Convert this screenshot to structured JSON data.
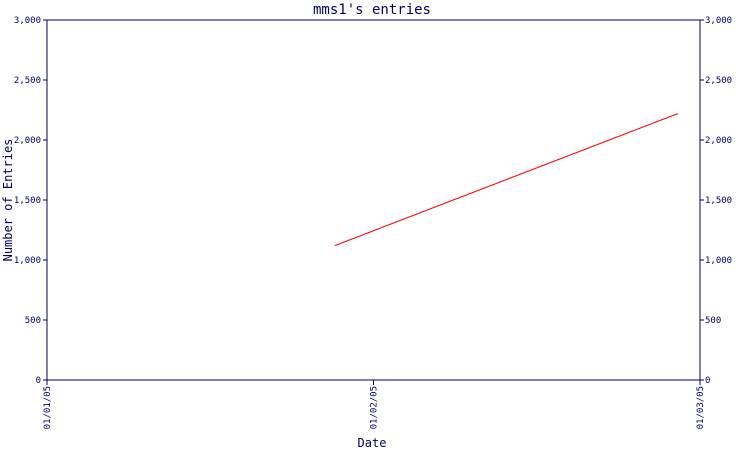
{
  "chart_data": {
    "type": "line",
    "title": "mms1's entries",
    "xlabel": "Date",
    "ylabel": "Number of Entries",
    "x_ticks": [
      "01/01/05",
      "01/02/05",
      "01/03/05"
    ],
    "y_ticks": [
      "0",
      "500",
      "1,000",
      "1,500",
      "2,000",
      "2,500",
      "3,000"
    ],
    "y_tick_values": [
      0,
      500,
      1000,
      1500,
      2000,
      2500,
      3000
    ],
    "ylim": [
      0,
      3000
    ],
    "xlim": [
      "2005-01-01",
      "2005-03-01"
    ],
    "grid": false,
    "y_axis_both_sides": true,
    "series": [
      {
        "color": "#ff0000",
        "points": [
          {
            "x": "2005-01-27",
            "y": 1120
          },
          {
            "x": "2005-02-27",
            "y": 2220
          }
        ]
      }
    ]
  },
  "colors": {
    "axis": "#000066",
    "background": "#ffffff",
    "line": "#ff0000"
  }
}
